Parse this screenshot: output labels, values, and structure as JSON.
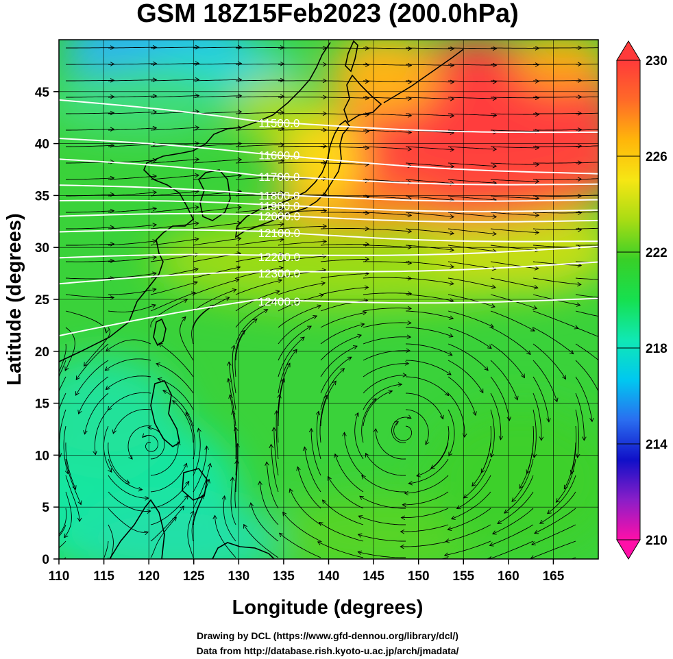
{
  "title": "GSM 18Z15Feb2023 (200.0hPa)",
  "xlabel": "Longitude (degrees)",
  "ylabel": "Latitude  (degrees)",
  "credits": [
    "Drawing by DCL (https://www.gfd-dennou.org/library/dcl/)",
    "Data from http://database.rish.kyoto-u.ac.jp/arch/jmadata/"
  ],
  "map": {
    "lon_range": [
      110,
      170
    ],
    "lat_range": [
      0,
      50
    ],
    "lon_ticks": [
      "110",
      "115",
      "120",
      "125",
      "130",
      "135",
      "140",
      "145",
      "150",
      "155",
      "160",
      "165"
    ],
    "lat_ticks": [
      "0",
      "5",
      "10",
      "15",
      "20",
      "25",
      "30",
      "35",
      "40",
      "45"
    ],
    "grid": true
  },
  "colorbar": {
    "range": [
      210,
      230
    ],
    "labels": [
      "230",
      "226",
      "222",
      "218",
      "214",
      "210"
    ],
    "colors": [
      "#ff0fa8",
      "#8a1ec8",
      "#1010c8",
      "#2a6ef0",
      "#00c8f0",
      "#10e8b4",
      "#16e050",
      "#38d028",
      "#a8dc14",
      "#f6e614",
      "#ffb60a",
      "#ff6a28",
      "#ff3a3a"
    ]
  },
  "contours": {
    "color": "#ffffff",
    "levels": [
      {
        "label": "11500.0"
      },
      {
        "label": "11600.0"
      },
      {
        "label": "11700.0"
      },
      {
        "label": "11800.0"
      },
      {
        "label": "11900.0"
      },
      {
        "label": "12000.0"
      },
      {
        "label": "12100.0"
      },
      {
        "label": "12200.0"
      },
      {
        "label": "12300.0"
      },
      {
        "label": "12400.0"
      }
    ]
  }
}
